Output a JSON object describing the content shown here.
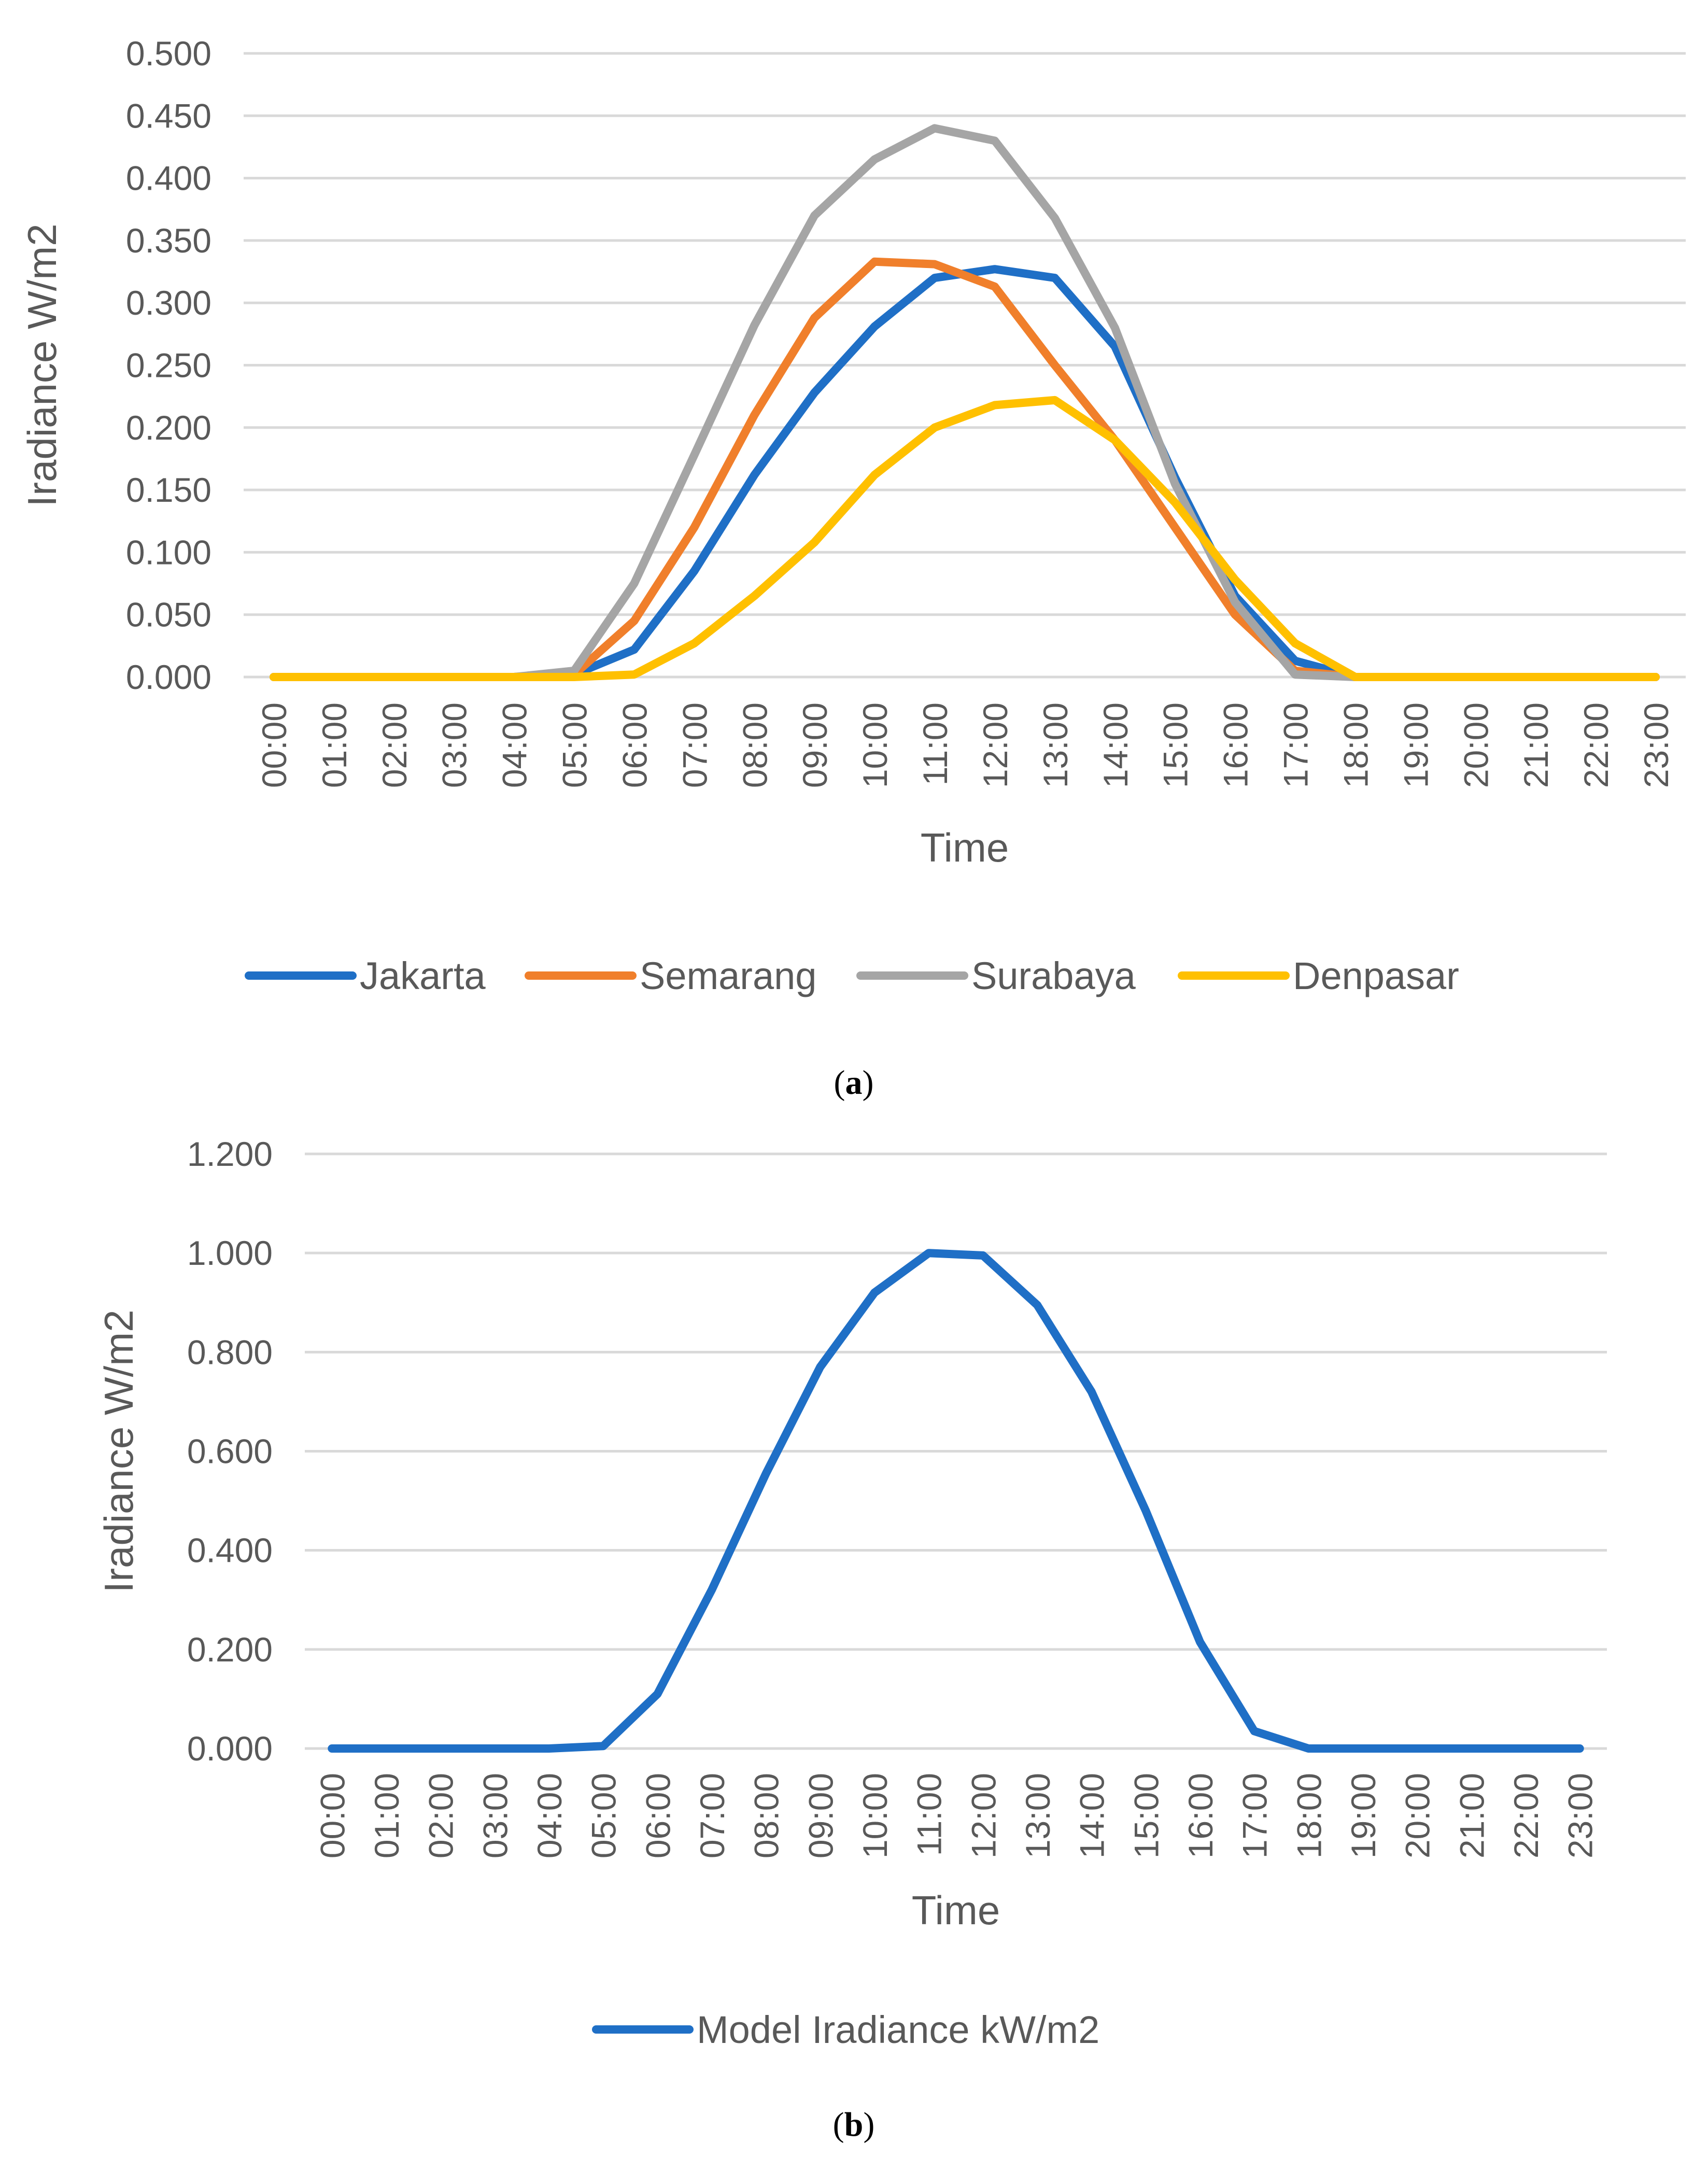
{
  "chart_data": [
    {
      "type": "line",
      "panel_label": "a",
      "title": "",
      "xlabel": "Time",
      "ylabel": "Iradiance W/m2",
      "ylim": [
        0,
        0.5
      ],
      "yticks": [
        "0.000",
        "0.050",
        "0.100",
        "0.150",
        "0.200",
        "0.250",
        "0.300",
        "0.350",
        "0.400",
        "0.450",
        "0.500"
      ],
      "grid": true,
      "legend_position": "bottom",
      "categories": [
        "00:00",
        "01:00",
        "02:00",
        "03:00",
        "04:00",
        "05:00",
        "06:00",
        "07:00",
        "08:00",
        "09:00",
        "10:00",
        "11:00",
        "12:00",
        "13:00",
        "14:00",
        "15:00",
        "16:00",
        "17:00",
        "18:00",
        "19:00",
        "20:00",
        "21:00",
        "22:00",
        "23:00"
      ],
      "series": [
        {
          "name": "Jakarta",
          "color": "#1F6FC6",
          "values": [
            0,
            0,
            0,
            0,
            0,
            0.002,
            0.022,
            0.085,
            0.162,
            0.228,
            0.281,
            0.32,
            0.327,
            0.32,
            0.265,
            0.16,
            0.065,
            0.013,
            0,
            0,
            0,
            0,
            0,
            0
          ]
        },
        {
          "name": "Semarang",
          "color": "#F07F2B",
          "values": [
            0,
            0,
            0,
            0,
            0,
            0.002,
            0.045,
            0.12,
            0.21,
            0.288,
            0.333,
            0.331,
            0.313,
            0.25,
            0.19,
            0.12,
            0.05,
            0.005,
            0,
            0,
            0,
            0,
            0,
            0
          ]
        },
        {
          "name": "Surabaya",
          "color": "#A5A5A5",
          "values": [
            0,
            0,
            0,
            0,
            0,
            0.005,
            0.075,
            0.178,
            0.282,
            0.37,
            0.415,
            0.44,
            0.43,
            0.368,
            0.28,
            0.155,
            0.06,
            0.002,
            0,
            0,
            0,
            0,
            0,
            0
          ]
        },
        {
          "name": "Denpasar",
          "color": "#FFC000",
          "values": [
            0,
            0,
            0,
            0,
            0,
            0,
            0.002,
            0.027,
            0.065,
            0.108,
            0.162,
            0.2,
            0.218,
            0.222,
            0.19,
            0.14,
            0.078,
            0.027,
            0,
            0,
            0,
            0,
            0,
            0
          ]
        }
      ]
    },
    {
      "type": "line",
      "panel_label": "b",
      "title": "",
      "xlabel": "Time",
      "ylabel": "Iradiance W/m2",
      "ylim": [
        0,
        1.2
      ],
      "yticks": [
        "0.000",
        "0.200",
        "0.400",
        "0.600",
        "0.800",
        "1.000",
        "1.200"
      ],
      "grid": true,
      "legend_position": "bottom",
      "categories": [
        "00:00",
        "01:00",
        "02:00",
        "03:00",
        "04:00",
        "05:00",
        "06:00",
        "07:00",
        "08:00",
        "09:00",
        "10:00",
        "11:00",
        "12:00",
        "13:00",
        "14:00",
        "15:00",
        "16:00",
        "17:00",
        "18:00",
        "19:00",
        "20:00",
        "21:00",
        "22:00",
        "23:00"
      ],
      "series": [
        {
          "name": "Model Iradiance kW/m2",
          "color": "#1F6FC6",
          "values": [
            0,
            0,
            0,
            0,
            0,
            0.005,
            0.11,
            0.32,
            0.555,
            0.77,
            0.92,
            1.0,
            0.995,
            0.895,
            0.72,
            0.48,
            0.215,
            0.035,
            0,
            0,
            0,
            0,
            0,
            0
          ]
        }
      ]
    }
  ]
}
